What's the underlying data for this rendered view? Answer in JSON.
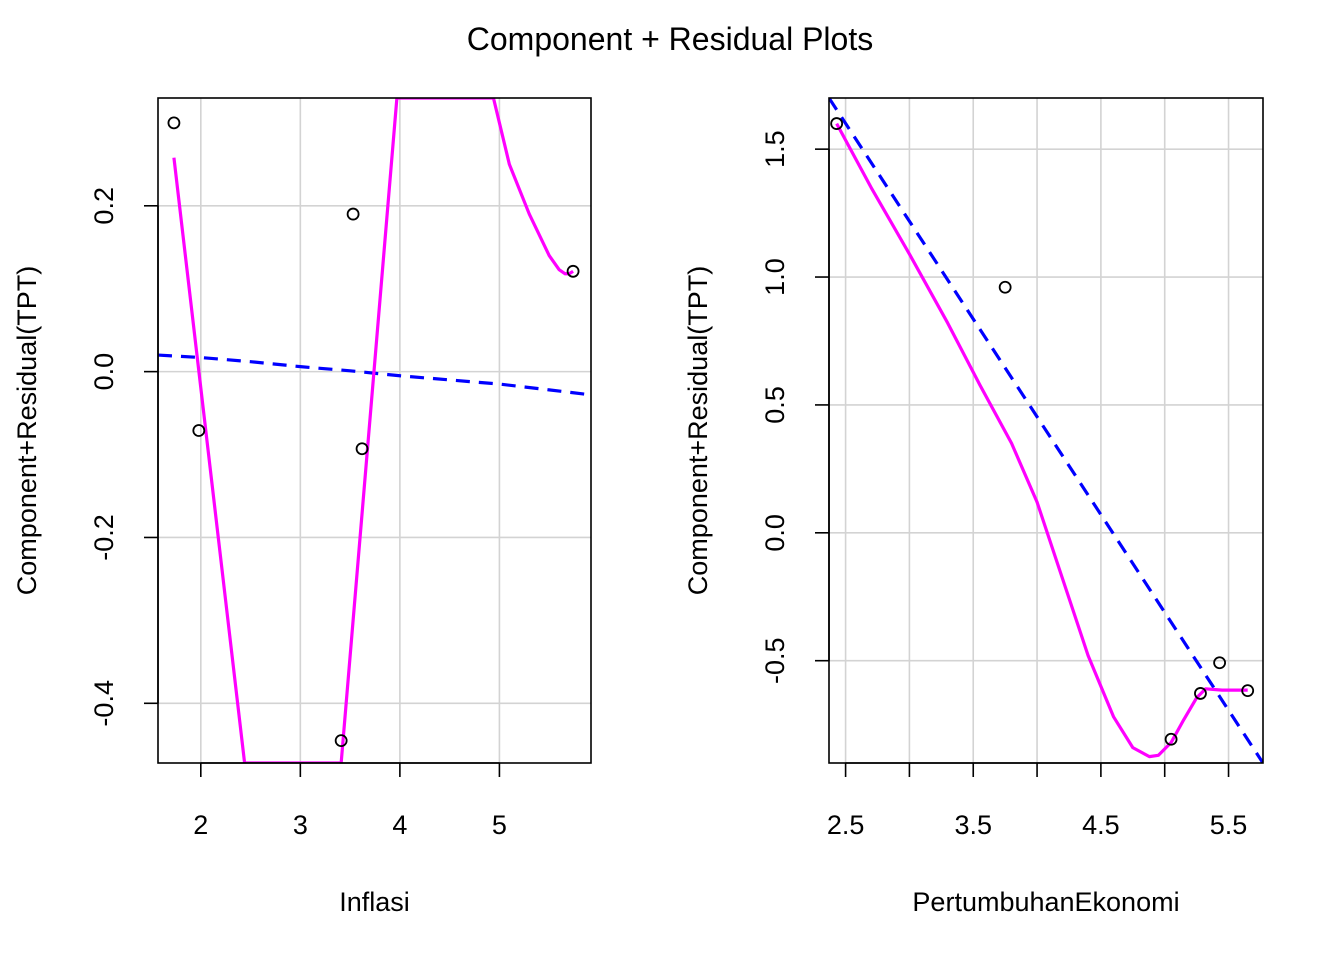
{
  "figure": {
    "title": "Component + Residual Plots"
  },
  "chart_data": [
    {
      "type": "scatter",
      "xlabel": "Inflasi",
      "ylabel": "Component+Residual(TPT)",
      "xlim": [
        1.57,
        5.92
      ],
      "ylim": [
        -0.472,
        0.33
      ],
      "x_ticks": [
        2,
        3,
        4,
        5
      ],
      "x_tick_labels": [
        "2",
        "3",
        "4",
        "5"
      ],
      "y_ticks": [
        -0.4,
        -0.2,
        0.0,
        0.2
      ],
      "y_tick_labels": [
        "-0.4",
        "-0.2",
        "0.0",
        "0.2"
      ],
      "grid": true,
      "points": {
        "x": [
          1.73,
          1.98,
          3.41,
          3.53,
          3.62,
          5.74
        ],
        "y": [
          0.3,
          -0.071,
          -0.445,
          0.19,
          -0.093,
          0.121
        ]
      },
      "fit_line": {
        "x": [
          1.57,
          2.0,
          2.5,
          3.0,
          3.5,
          4.0,
          4.5,
          5.0,
          5.5,
          5.92
        ],
        "y": [
          0.02,
          0.017,
          0.012,
          0.006,
          0.001,
          -0.005,
          -0.01,
          -0.015,
          -0.022,
          -0.028
        ]
      },
      "smooth_line": {
        "x": [
          1.73,
          2.44,
          3.41,
          3.97,
          4.94,
          5.1,
          5.3,
          5.5,
          5.6,
          5.66,
          5.7,
          5.74
        ],
        "y": [
          0.258,
          -0.472,
          -0.472,
          0.33,
          0.33,
          0.25,
          0.19,
          0.14,
          0.123,
          0.118,
          0.118,
          0.121
        ]
      },
      "colors": {
        "points": "#000000",
        "fit": "#0000ff",
        "smooth": "#ff00ff",
        "grid": "#d3d3d3"
      }
    },
    {
      "type": "scatter",
      "xlabel": "PertumbuhanEkonomi",
      "ylabel": "Component+Residual(TPT)",
      "xlim": [
        2.37,
        5.77
      ],
      "ylim": [
        -0.9,
        1.7
      ],
      "x_ticks": [
        2.5,
        3.0,
        3.5,
        4.0,
        4.5,
        5.0,
        5.5
      ],
      "x_tick_labels": [
        "2.5",
        "",
        "3.5",
        "",
        "4.5",
        "",
        "5.5"
      ],
      "y_ticks": [
        -0.5,
        0.0,
        0.5,
        1.0,
        1.5
      ],
      "y_tick_labels": [
        "-0.5",
        "0.0",
        "0.5",
        "1.0",
        "1.5"
      ],
      "grid": true,
      "points": {
        "x": [
          2.43,
          3.75,
          5.05,
          5.28,
          5.43,
          5.65
        ],
        "y": [
          1.6,
          0.96,
          -0.807,
          -0.628,
          -0.508,
          -0.617
        ]
      },
      "fit_line": {
        "x": [
          2.37,
          5.77
        ],
        "y": [
          1.7,
          -0.9
        ]
      },
      "smooth_line": {
        "x": [
          2.43,
          2.7,
          3.0,
          3.3,
          3.55,
          3.8,
          4.0,
          4.2,
          4.4,
          4.6,
          4.75,
          4.88,
          4.95,
          5.05,
          5.15,
          5.25,
          5.32,
          5.45,
          5.55,
          5.65
        ],
        "y": [
          1.6,
          1.35,
          1.09,
          0.82,
          0.58,
          0.35,
          0.12,
          -0.18,
          -0.48,
          -0.72,
          -0.84,
          -0.875,
          -0.87,
          -0.82,
          -0.73,
          -0.645,
          -0.61,
          -0.615,
          -0.615,
          -0.615
        ]
      },
      "colors": {
        "points": "#000000",
        "fit": "#0000ff",
        "smooth": "#ff00ff",
        "grid": "#d3d3d3"
      }
    }
  ]
}
